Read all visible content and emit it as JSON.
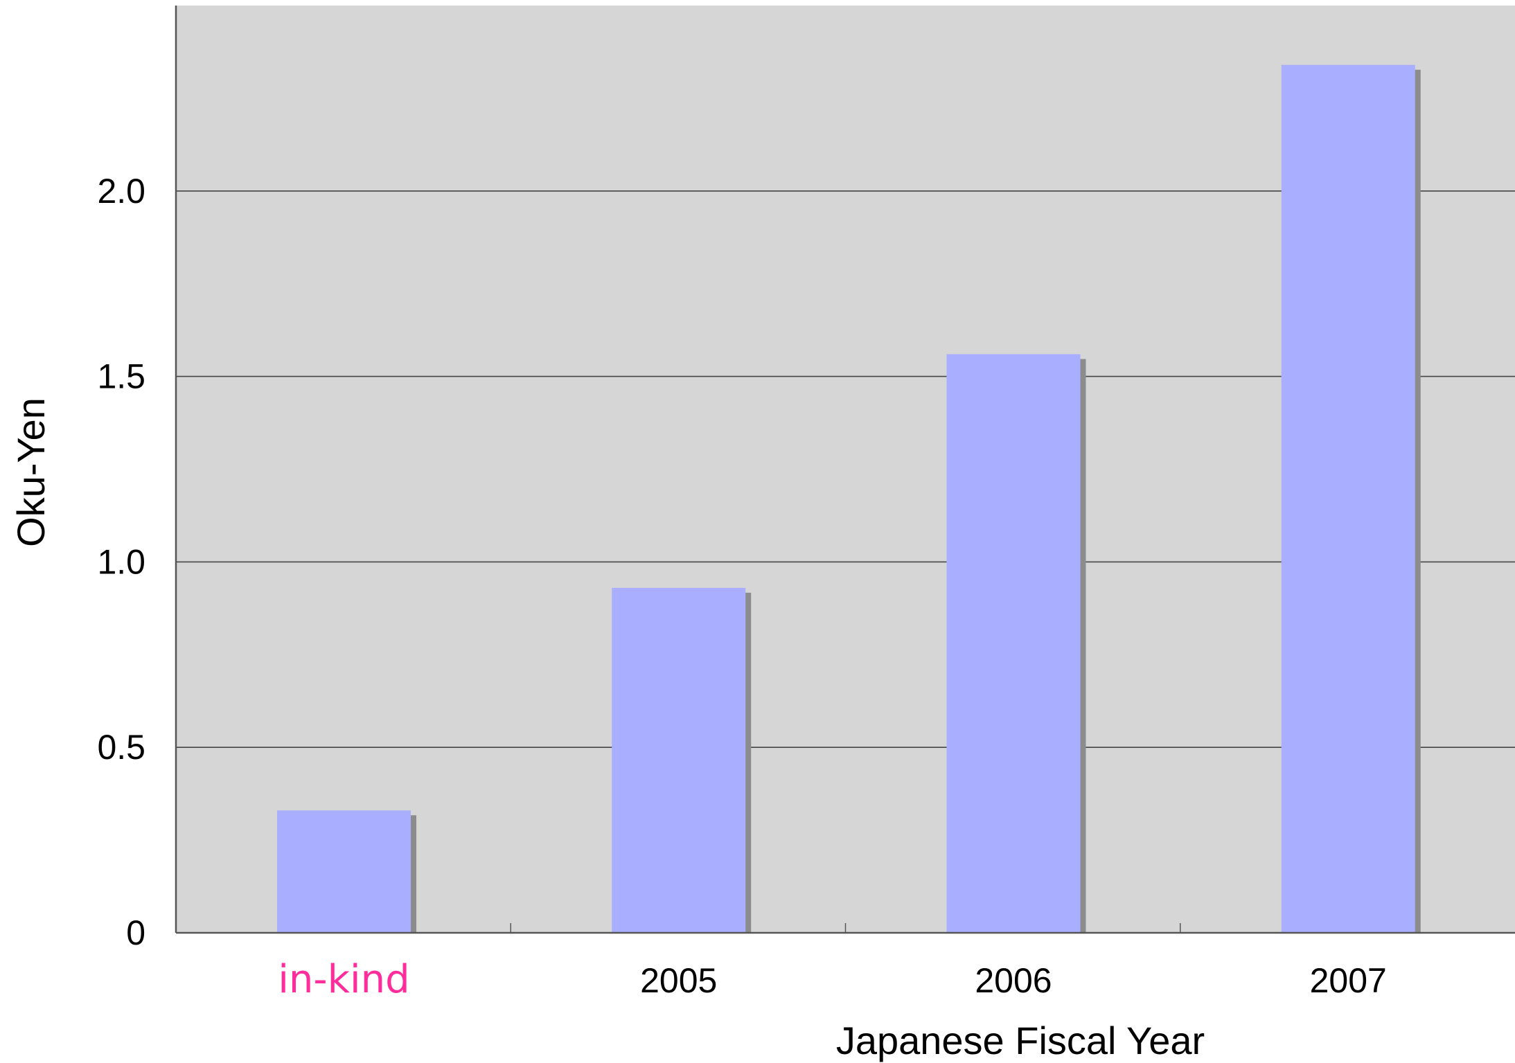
{
  "chart_data": {
    "type": "bar",
    "categories": [
      "in-kind",
      "2005",
      "2006",
      "2007"
    ],
    "values": [
      0.33,
      0.93,
      1.56,
      2.34
    ],
    "title": "",
    "xlabel": "Japanese Fiscal Year",
    "ylabel": "Oku-Yen",
    "ylim": [
      0,
      2.5
    ],
    "yticks": [
      {
        "value": 0,
        "label": "0"
      },
      {
        "value": 0.5,
        "label": "0.5"
      },
      {
        "value": 1.0,
        "label": "1.0"
      },
      {
        "value": 1.5,
        "label": "1.5"
      },
      {
        "value": 2.0,
        "label": "2.0"
      }
    ],
    "grid": true,
    "legend": "none",
    "highlighted_category": "in-kind",
    "colors": {
      "plot_background": "#d6d6d6",
      "bar": "#aaaeff",
      "bar_shadow": "#8c8c8c",
      "gridline": "#444444",
      "axis": "#555555",
      "highlight_label": "#ff2d9b"
    }
  }
}
